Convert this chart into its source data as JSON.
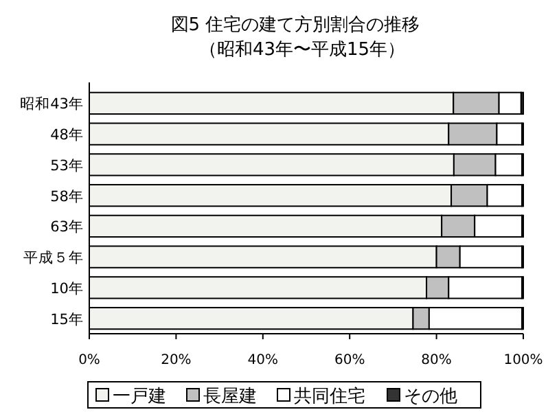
{
  "chart_data": {
    "type": "bar",
    "orientation": "horizontal",
    "stacked": true,
    "title": "図5  住宅の建て方別割合の推移",
    "subtitle": "（昭和43年〜平成15年）",
    "categories": [
      "昭和43年",
      "48年",
      "53年",
      "58年",
      "63年",
      "平成５年",
      "10年",
      "15年"
    ],
    "series": [
      {
        "name": "一戸建",
        "color": "#f2f2ee",
        "values": [
          83.9,
          82.8,
          84.0,
          83.4,
          81.2,
          80.0,
          77.7,
          74.6
        ]
      },
      {
        "name": "長屋建",
        "color": "#c0c0c0",
        "values": [
          10.5,
          11.1,
          9.6,
          8.3,
          7.6,
          5.4,
          5.1,
          3.7
        ]
      },
      {
        "name": "共同住宅",
        "color": "#ffffff",
        "values": [
          5.1,
          5.8,
          6.1,
          8.0,
          10.9,
          14.3,
          16.9,
          21.4
        ]
      },
      {
        "name": "その他",
        "color": "#333333",
        "values": [
          0.5,
          0.3,
          0.3,
          0.3,
          0.3,
          0.3,
          0.3,
          0.3
        ]
      }
    ],
    "xlim": [
      0,
      100
    ],
    "xticks": [
      {
        "value": 0,
        "label": "0%"
      },
      {
        "value": 20,
        "label": "20%"
      },
      {
        "value": 40,
        "label": "40%"
      },
      {
        "value": 60,
        "label": "60%"
      },
      {
        "value": 80,
        "label": "80%"
      },
      {
        "value": 100,
        "label": "100%"
      }
    ],
    "grid": false,
    "legend": "bottom"
  }
}
